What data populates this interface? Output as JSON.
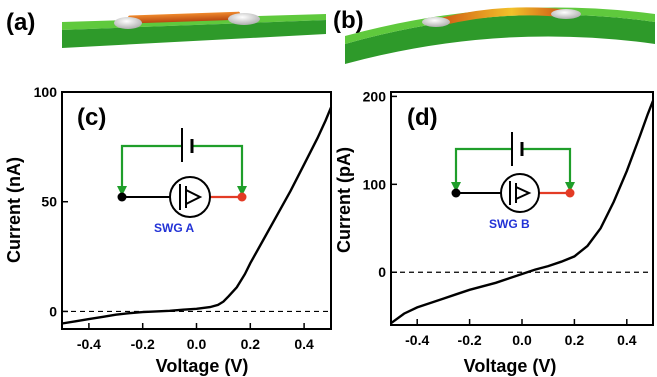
{
  "colors": {
    "substrate_top": "#5fc93d",
    "substrate_side": "#2e9a2a",
    "wire": "#c95a18",
    "wire_hot": "#f0c020",
    "electrode": "#dcdcdc",
    "circuit_green": "#1f9e2a",
    "red": "#e33b25",
    "label_blue": "#2232d6"
  },
  "chart_data": [
    {
      "id": "c",
      "type": "line",
      "panel_label": "(c)",
      "xlabel": "Voltage (V)",
      "ylabel": "Current (nA)",
      "xlim": [
        -0.5,
        0.5
      ],
      "ylim": [
        -8,
        100
      ],
      "xticks": [
        -0.4,
        -0.2,
        0.0,
        0.2,
        0.4
      ],
      "xtick_labels": [
        "-0.4",
        "-0.2",
        "0.0",
        "0.2",
        "0.4"
      ],
      "yticks": [
        0,
        50,
        100
      ],
      "ytick_labels": [
        "0",
        "50",
        "100"
      ],
      "zero_line": "dashed",
      "inset_label": "SWG A",
      "series": [
        {
          "x": [
            -0.5,
            -0.45,
            -0.4,
            -0.35,
            -0.3,
            -0.25,
            -0.2,
            -0.15,
            -0.1,
            -0.05,
            0.0,
            0.05,
            0.08,
            0.1,
            0.12,
            0.15,
            0.18,
            0.2,
            0.25,
            0.3,
            0.35,
            0.4,
            0.45,
            0.48,
            0.5
          ],
          "values": [
            -5.5,
            -4.5,
            -3.5,
            -2.5,
            -1.5,
            -0.8,
            -0.3,
            0.0,
            0.3,
            0.8,
            1.2,
            2.0,
            3.0,
            4.5,
            7.0,
            11,
            17,
            22,
            33,
            44,
            55,
            67,
            79,
            87,
            93
          ]
        }
      ]
    },
    {
      "id": "d",
      "type": "line",
      "panel_label": "(d)",
      "xlabel": "Voltage (V)",
      "ylabel": "Current (pA)",
      "xlim": [
        -0.5,
        0.5
      ],
      "ylim": [
        -60,
        205
      ],
      "xticks": [
        -0.4,
        -0.2,
        0.0,
        0.2,
        0.4
      ],
      "xtick_labels": [
        "-0.4",
        "-0.2",
        "0.0",
        "0.2",
        "0.4"
      ],
      "yticks": [
        0,
        100,
        200
      ],
      "ytick_labels": [
        "0",
        "100",
        "200"
      ],
      "zero_line": "dashed",
      "inset_label": "SWG B",
      "series": [
        {
          "x": [
            -0.5,
            -0.45,
            -0.4,
            -0.35,
            -0.3,
            -0.25,
            -0.2,
            -0.15,
            -0.1,
            -0.05,
            0.0,
            0.05,
            0.1,
            0.15,
            0.2,
            0.25,
            0.3,
            0.35,
            0.4,
            0.45,
            0.48,
            0.5
          ],
          "values": [
            -58,
            -47,
            -40,
            -35,
            -30,
            -25,
            -20,
            -16,
            -12,
            -7,
            -2,
            3,
            7,
            12,
            18,
            30,
            50,
            80,
            115,
            155,
            180,
            195
          ]
        }
      ]
    }
  ],
  "panels_top": [
    {
      "id": "a",
      "label": "(a)"
    },
    {
      "id": "b",
      "label": "(b)"
    }
  ]
}
